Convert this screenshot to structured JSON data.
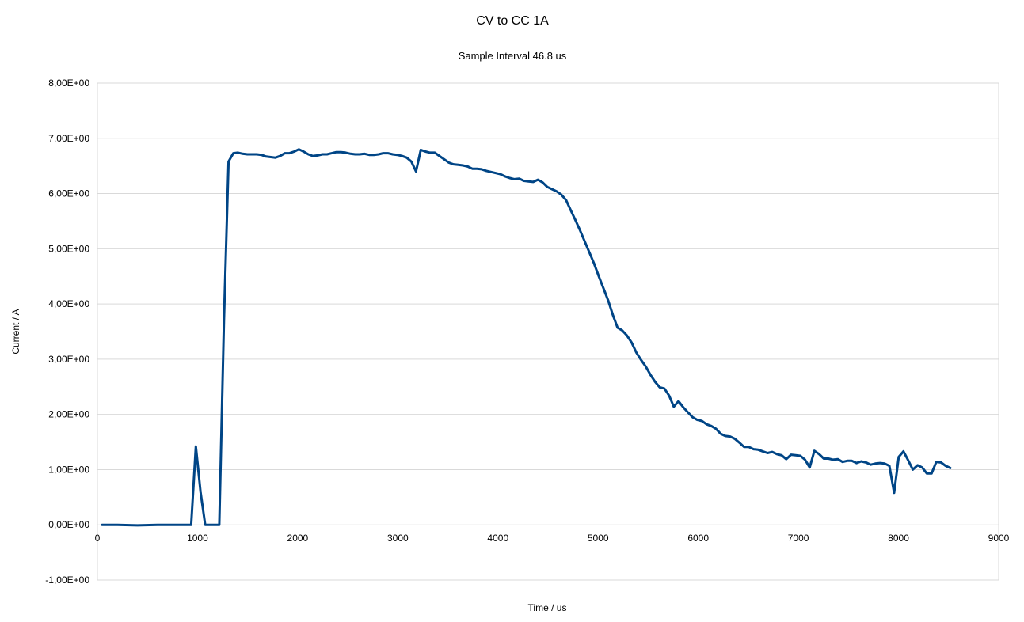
{
  "chart_data": {
    "type": "line",
    "title": "CV to CC 1A",
    "subtitle": "Sample Interval 46.8 us",
    "xlabel": "Time / us",
    "ylabel": "Current / A",
    "xlim": [
      0,
      9000
    ],
    "ylim": [
      -1,
      8
    ],
    "x_ticks": [
      0,
      1000,
      2000,
      3000,
      4000,
      5000,
      6000,
      7000,
      8000,
      9000
    ],
    "x_tick_labels": [
      "0",
      "1000",
      "2000",
      "3000",
      "4000",
      "5000",
      "6000",
      "7000",
      "8000",
      "9000"
    ],
    "y_ticks": [
      -1,
      0,
      1,
      2,
      3,
      4,
      5,
      6,
      7,
      8
    ],
    "y_tick_labels": [
      "-1,00E+00",
      "0,00E+00",
      "1,00E+00",
      "2,00E+00",
      "3,00E+00",
      "4,00E+00",
      "5,00E+00",
      "6,00E+00",
      "7,00E+00",
      "8,00E+00"
    ],
    "grid": true,
    "legend": "none",
    "series_color": "#004586",
    "series": [
      {
        "points": [
          [
            47,
            0.0
          ],
          [
            200,
            0.0
          ],
          [
            400,
            -0.01
          ],
          [
            600,
            0.0
          ],
          [
            800,
            0.0
          ],
          [
            936,
            0.0
          ],
          [
            983,
            1.42
          ],
          [
            1030,
            0.6
          ],
          [
            1076,
            0.0
          ],
          [
            1123,
            0.0
          ],
          [
            1170,
            0.0
          ],
          [
            1217,
            0.0
          ],
          [
            1264,
            3.7
          ],
          [
            1310,
            6.58
          ],
          [
            1357,
            6.73
          ],
          [
            1404,
            6.74
          ],
          [
            1450,
            6.72
          ],
          [
            1497,
            6.71
          ],
          [
            1544,
            6.71
          ],
          [
            1591,
            6.71
          ],
          [
            1638,
            6.7
          ],
          [
            1684,
            6.67
          ],
          [
            1731,
            6.66
          ],
          [
            1778,
            6.65
          ],
          [
            1825,
            6.68
          ],
          [
            1872,
            6.73
          ],
          [
            1918,
            6.73
          ],
          [
            1965,
            6.76
          ],
          [
            2012,
            6.8
          ],
          [
            2059,
            6.76
          ],
          [
            2106,
            6.71
          ],
          [
            2152,
            6.68
          ],
          [
            2199,
            6.69
          ],
          [
            2246,
            6.71
          ],
          [
            2293,
            6.71
          ],
          [
            2340,
            6.73
          ],
          [
            2386,
            6.75
          ],
          [
            2433,
            6.75
          ],
          [
            2480,
            6.74
          ],
          [
            2527,
            6.72
          ],
          [
            2574,
            6.71
          ],
          [
            2620,
            6.71
          ],
          [
            2667,
            6.72
          ],
          [
            2714,
            6.7
          ],
          [
            2761,
            6.7
          ],
          [
            2808,
            6.71
          ],
          [
            2854,
            6.73
          ],
          [
            2901,
            6.73
          ],
          [
            2948,
            6.71
          ],
          [
            2995,
            6.7
          ],
          [
            3042,
            6.68
          ],
          [
            3088,
            6.65
          ],
          [
            3135,
            6.58
          ],
          [
            3182,
            6.4
          ],
          [
            3229,
            6.79
          ],
          [
            3276,
            6.76
          ],
          [
            3322,
            6.74
          ],
          [
            3369,
            6.74
          ],
          [
            3416,
            6.68
          ],
          [
            3463,
            6.62
          ],
          [
            3510,
            6.56
          ],
          [
            3556,
            6.53
          ],
          [
            3603,
            6.52
          ],
          [
            3650,
            6.51
          ],
          [
            3697,
            6.49
          ],
          [
            3744,
            6.45
          ],
          [
            3790,
            6.45
          ],
          [
            3837,
            6.44
          ],
          [
            3884,
            6.41
          ],
          [
            3931,
            6.39
          ],
          [
            3978,
            6.37
          ],
          [
            4024,
            6.35
          ],
          [
            4071,
            6.31
          ],
          [
            4118,
            6.28
          ],
          [
            4165,
            6.26
          ],
          [
            4212,
            6.27
          ],
          [
            4258,
            6.23
          ],
          [
            4305,
            6.22
          ],
          [
            4352,
            6.21
          ],
          [
            4399,
            6.25
          ],
          [
            4446,
            6.2
          ],
          [
            4492,
            6.12
          ],
          [
            4539,
            6.08
          ],
          [
            4586,
            6.04
          ],
          [
            4633,
            5.98
          ],
          [
            4680,
            5.88
          ],
          [
            4726,
            5.7
          ],
          [
            4773,
            5.52
          ],
          [
            4820,
            5.33
          ],
          [
            4867,
            5.13
          ],
          [
            4914,
            4.93
          ],
          [
            4960,
            4.73
          ],
          [
            5007,
            4.5
          ],
          [
            5054,
            4.28
          ],
          [
            5101,
            4.06
          ],
          [
            5148,
            3.8
          ],
          [
            5194,
            3.57
          ],
          [
            5241,
            3.52
          ],
          [
            5288,
            3.43
          ],
          [
            5335,
            3.3
          ],
          [
            5382,
            3.12
          ],
          [
            5428,
            2.99
          ],
          [
            5475,
            2.87
          ],
          [
            5522,
            2.72
          ],
          [
            5569,
            2.59
          ],
          [
            5616,
            2.49
          ],
          [
            5662,
            2.47
          ],
          [
            5709,
            2.34
          ],
          [
            5756,
            2.14
          ],
          [
            5803,
            2.24
          ],
          [
            5850,
            2.13
          ],
          [
            5896,
            2.04
          ],
          [
            5943,
            1.95
          ],
          [
            5990,
            1.9
          ],
          [
            6037,
            1.88
          ],
          [
            6084,
            1.82
          ],
          [
            6130,
            1.79
          ],
          [
            6177,
            1.74
          ],
          [
            6224,
            1.65
          ],
          [
            6271,
            1.61
          ],
          [
            6318,
            1.6
          ],
          [
            6364,
            1.56
          ],
          [
            6411,
            1.49
          ],
          [
            6458,
            1.41
          ],
          [
            6505,
            1.41
          ],
          [
            6552,
            1.37
          ],
          [
            6598,
            1.36
          ],
          [
            6645,
            1.33
          ],
          [
            6692,
            1.3
          ],
          [
            6739,
            1.32
          ],
          [
            6786,
            1.28
          ],
          [
            6832,
            1.26
          ],
          [
            6879,
            1.19
          ],
          [
            6926,
            1.27
          ],
          [
            6973,
            1.26
          ],
          [
            7020,
            1.25
          ],
          [
            7066,
            1.18
          ],
          [
            7113,
            1.04
          ],
          [
            7160,
            1.34
          ],
          [
            7207,
            1.28
          ],
          [
            7254,
            1.2
          ],
          [
            7300,
            1.2
          ],
          [
            7347,
            1.18
          ],
          [
            7394,
            1.19
          ],
          [
            7441,
            1.14
          ],
          [
            7488,
            1.16
          ],
          [
            7534,
            1.16
          ],
          [
            7581,
            1.12
          ],
          [
            7628,
            1.15
          ],
          [
            7675,
            1.13
          ],
          [
            7722,
            1.09
          ],
          [
            7768,
            1.11
          ],
          [
            7815,
            1.12
          ],
          [
            7862,
            1.11
          ],
          [
            7909,
            1.07
          ],
          [
            7956,
            0.58
          ],
          [
            8002,
            1.23
          ],
          [
            8049,
            1.33
          ],
          [
            8096,
            1.17
          ],
          [
            8143,
            1.0
          ],
          [
            8190,
            1.08
          ],
          [
            8236,
            1.04
          ],
          [
            8283,
            0.93
          ],
          [
            8330,
            0.93
          ],
          [
            8377,
            1.14
          ],
          [
            8424,
            1.13
          ],
          [
            8470,
            1.07
          ],
          [
            8517,
            1.03
          ]
        ]
      }
    ]
  }
}
